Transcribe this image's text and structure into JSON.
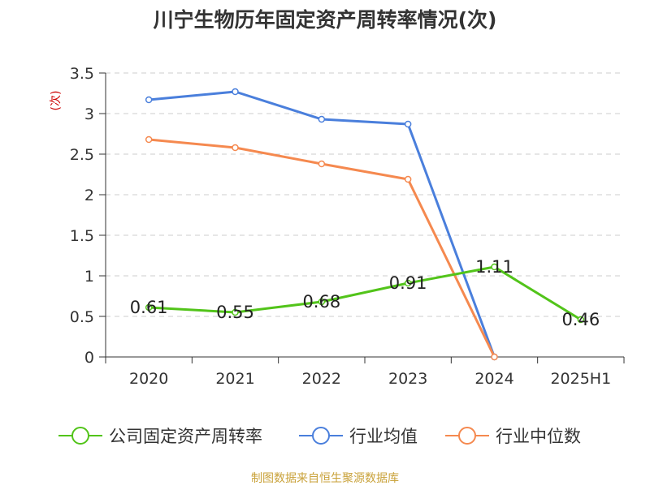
{
  "chart_data": {
    "type": "line",
    "title": "川宁生物历年固定资产周转率情况(次)",
    "ylabel": "(次)",
    "xlabel": "",
    "source": "制图数据来自恒生聚源数据库",
    "categories": [
      "2020",
      "2021",
      "2022",
      "2023",
      "2024",
      "2025H1"
    ],
    "ylim": [
      0,
      3.5
    ],
    "yticks": [
      "0",
      "0.5",
      "1",
      "1.5",
      "2",
      "2.5",
      "3",
      "3.5"
    ],
    "grid": true,
    "legend_position": "bottom",
    "series": [
      {
        "name": "公司固定资产周转率",
        "color": "#52c41a",
        "values": [
          0.61,
          0.55,
          0.68,
          0.91,
          1.11,
          0.46
        ],
        "labels": [
          "0.61",
          "0.55",
          "0.68",
          "0.91",
          "1.11",
          "0.46"
        ]
      },
      {
        "name": "行业均值",
        "color": "#4a7fdc",
        "values": [
          3.17,
          3.27,
          2.93,
          2.87,
          0,
          null
        ]
      },
      {
        "name": "行业中位数",
        "color": "#f5894f",
        "values": [
          2.68,
          2.58,
          2.38,
          2.19,
          0,
          null
        ]
      }
    ]
  }
}
